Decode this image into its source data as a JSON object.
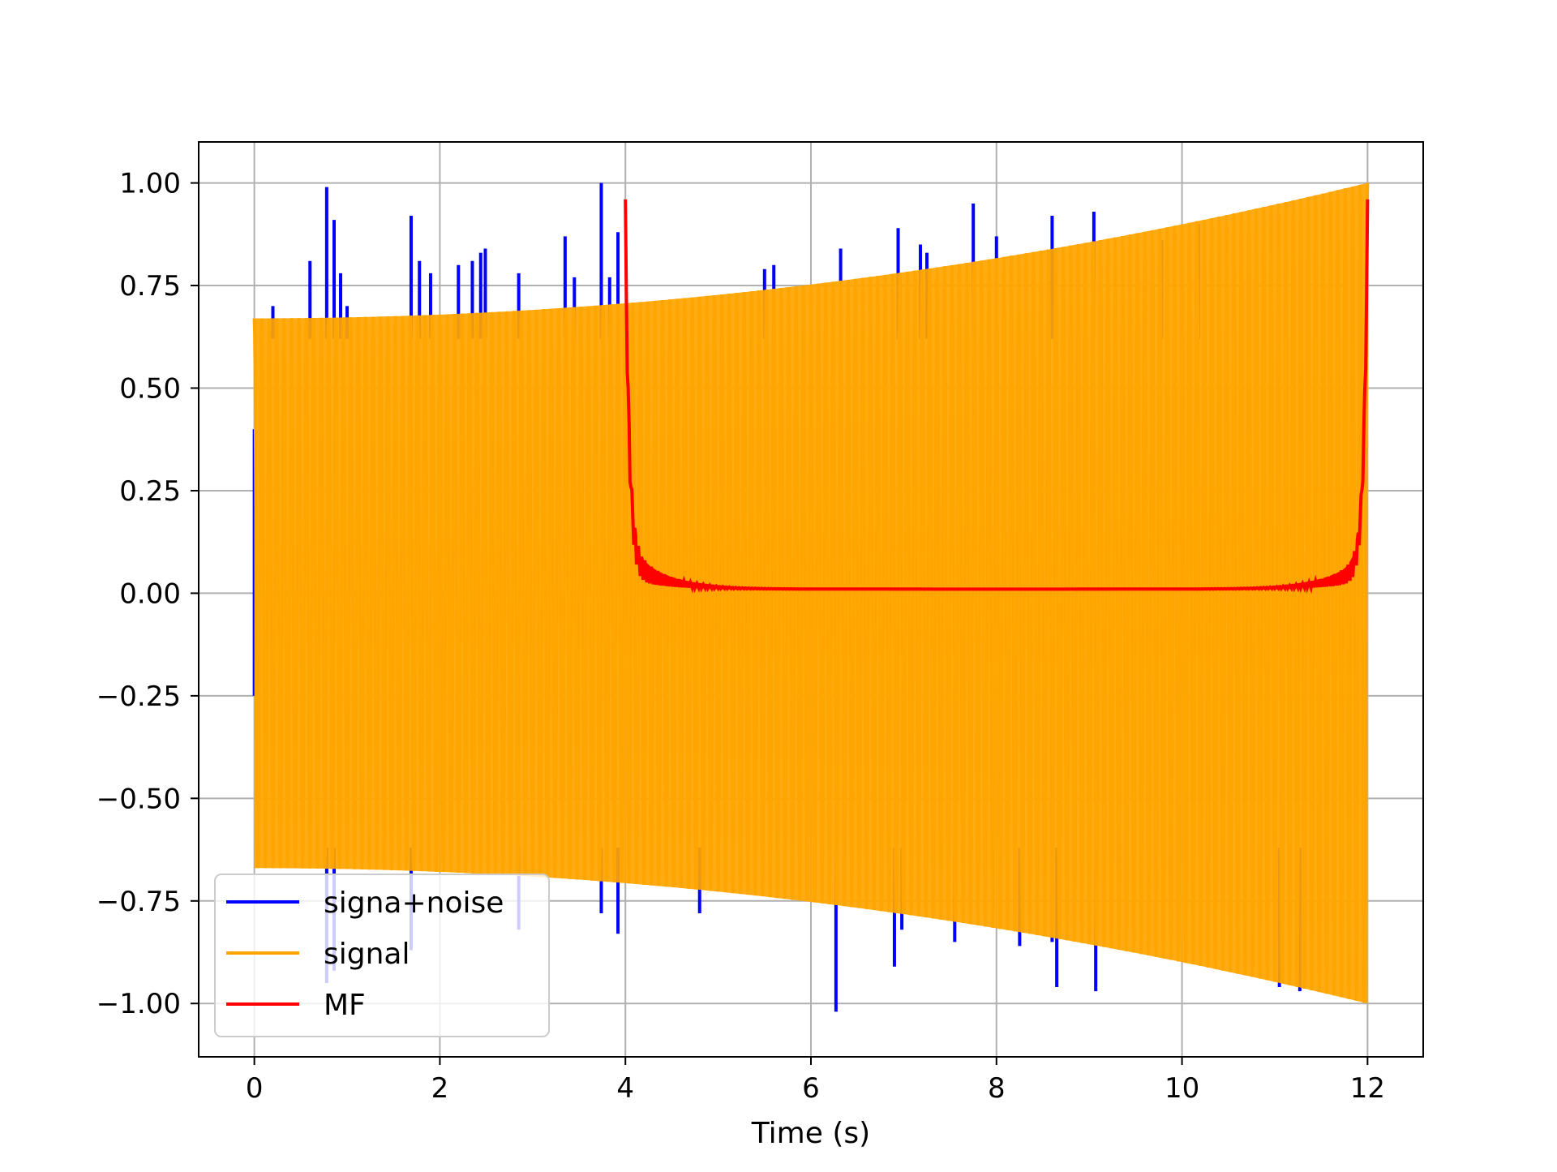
{
  "chart_data": {
    "type": "line",
    "title": "",
    "xlabel": "Time (s)",
    "ylabel": "",
    "xlim": [
      -0.6,
      12.6
    ],
    "ylim": [
      -1.13,
      1.1
    ],
    "xticks": [
      0,
      2,
      4,
      6,
      8,
      10,
      12
    ],
    "xtick_labels": [
      "0",
      "2",
      "4",
      "6",
      "8",
      "10",
      "12"
    ],
    "yticks": [
      1.0,
      0.75,
      0.5,
      0.25,
      0.0,
      -0.25,
      -0.5,
      -0.75,
      -1.0
    ],
    "ytick_labels": [
      "1.00",
      "0.75",
      "0.50",
      "0.25",
      "0.00",
      "−0.25",
      "−0.50",
      "−0.75",
      "−1.00"
    ],
    "grid": true,
    "legend": "lower-left",
    "series": [
      {
        "name": "signa+noise",
        "color": "#0000ff",
        "description": "signal plus impulsive noise spikes",
        "spikes": [
          [
            0.2,
            0.7
          ],
          [
            0.6,
            0.81
          ],
          [
            0.78,
            0.99
          ],
          [
            0.86,
            0.91
          ],
          [
            0.93,
            0.78
          ],
          [
            1.0,
            0.7
          ],
          [
            1.69,
            0.92
          ],
          [
            1.78,
            0.81
          ],
          [
            1.9,
            0.78
          ],
          [
            2.2,
            0.8
          ],
          [
            2.35,
            0.81
          ],
          [
            2.44,
            0.83
          ],
          [
            2.49,
            0.84
          ],
          [
            2.85,
            0.78
          ],
          [
            3.35,
            0.87
          ],
          [
            3.45,
            0.77
          ],
          [
            3.74,
            1.0
          ],
          [
            3.83,
            0.77
          ],
          [
            3.92,
            0.88
          ],
          [
            5.5,
            0.79
          ],
          [
            5.6,
            0.8
          ],
          [
            6.32,
            0.84
          ],
          [
            6.94,
            0.89
          ],
          [
            7.18,
            0.85
          ],
          [
            7.25,
            0.83
          ],
          [
            7.75,
            0.95
          ],
          [
            8.0,
            0.87
          ],
          [
            8.6,
            0.92
          ],
          [
            9.05,
            0.93
          ],
          [
            9.78,
            0.86
          ],
          [
            10.18,
            0.9
          ],
          [
            0.78,
            -0.95
          ],
          [
            0.86,
            -0.92
          ],
          [
            1.69,
            -0.87
          ],
          [
            2.85,
            -0.82
          ],
          [
            3.74,
            -0.78
          ],
          [
            3.92,
            -0.83
          ],
          [
            4.8,
            -0.78
          ],
          [
            6.27,
            -1.02
          ],
          [
            6.9,
            -0.91
          ],
          [
            6.98,
            -0.82
          ],
          [
            7.55,
            -0.85
          ],
          [
            8.25,
            -0.86
          ],
          [
            8.6,
            -0.85
          ],
          [
            8.65,
            -0.96
          ],
          [
            9.07,
            -0.97
          ],
          [
            11.05,
            -0.96
          ],
          [
            11.27,
            -0.97
          ]
        ]
      },
      {
        "name": "signal",
        "color": "#ffa500",
        "description": "oscillation with growing amplitude envelope",
        "t_start": 0,
        "t_end": 12,
        "amplitude_start": 0.67,
        "amplitude_end": 1.0,
        "cycles": 150
      },
      {
        "name": "MF",
        "color": "#ff0000",
        "description": "matched filter output",
        "t_start": 4.0,
        "t_end": 12.0,
        "start_value": 0.98,
        "end_value": 1.0,
        "baseline": 0.01
      }
    ]
  }
}
